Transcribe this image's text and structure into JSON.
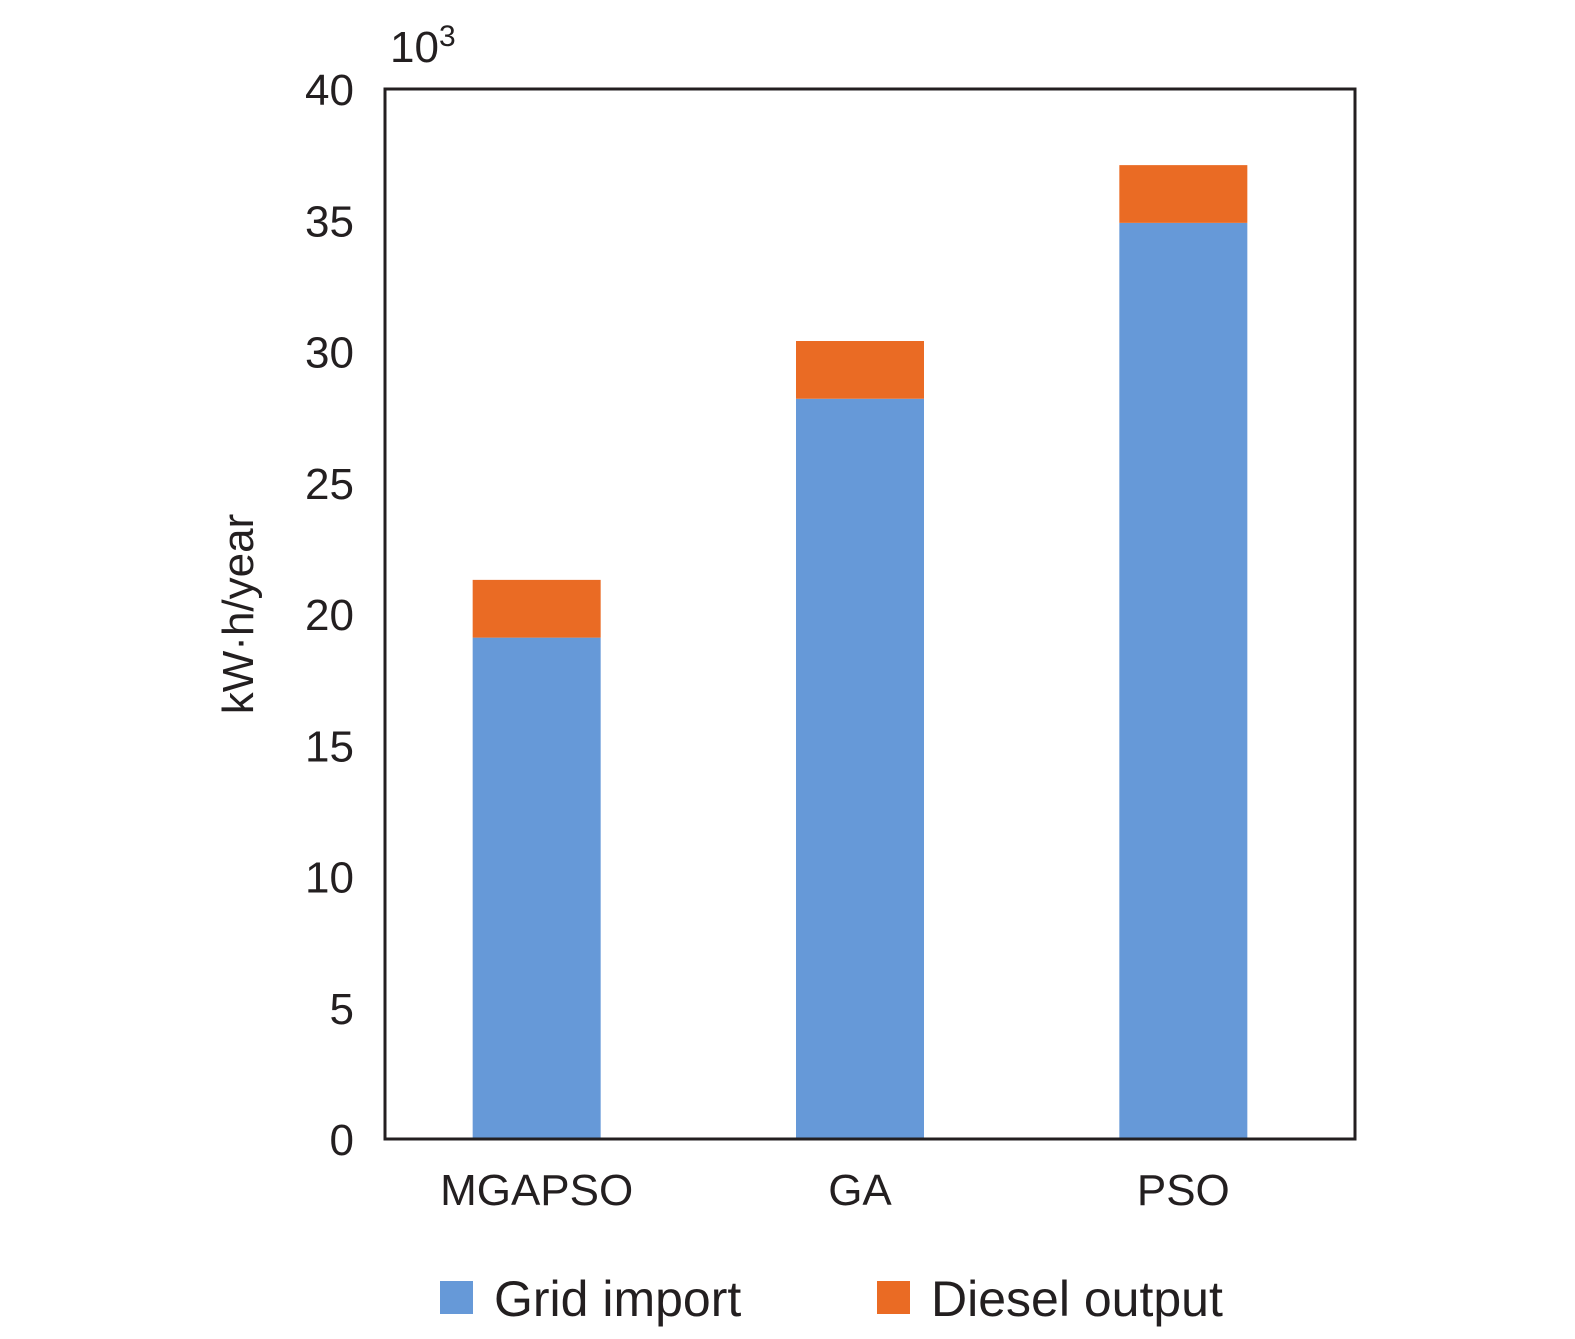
{
  "chart_data": {
    "type": "bar",
    "stacked": true,
    "title": "",
    "xlabel": "",
    "ylabel": "kW·h/year",
    "y_multiplier": "10",
    "y_multiplier_exp": "3",
    "ylim": [
      0,
      40
    ],
    "yticks": [
      0,
      5,
      10,
      15,
      20,
      25,
      30,
      35,
      40
    ],
    "grid": false,
    "legend_position": "bottom",
    "categories": [
      "MGAPSO",
      "GA",
      "PSO"
    ],
    "series": [
      {
        "name": "Grid import",
        "color": "#6699d8",
        "values": [
          19.1,
          28.2,
          34.9
        ]
      },
      {
        "name": "Diesel output",
        "color": "#ea6b24",
        "values": [
          2.2,
          2.2,
          2.2
        ]
      }
    ]
  }
}
